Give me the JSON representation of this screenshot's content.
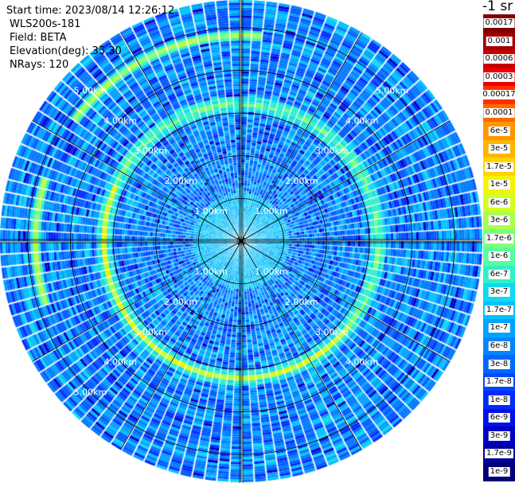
{
  "info": {
    "start_time": "Start time: 2023/08/14 12:26:12",
    "instrument": "WLS200s-181",
    "field": "Field: BETA",
    "elevation": "Elevation(deg): 35.30",
    "nrays": "NRays: 120"
  },
  "colorbar": {
    "title": "-1 sr",
    "labels": [
      "0.0017",
      "0.001",
      "0.0006",
      "0.0003",
      "0.00017",
      "0.0001",
      "6e-5",
      "3e-5",
      "1.7e-5",
      "1e-5",
      "6e-6",
      "3e-6",
      "1.7e-6",
      "1e-6",
      "6e-7",
      "3e-7",
      "1.7e-7",
      "1e-7",
      "6e-8",
      "3e-8",
      "1.7e-8",
      "1e-8",
      "6e-9",
      "3e-9",
      "1.7e-9",
      "1e-9"
    ],
    "colors": [
      "#800000",
      "#a00000",
      "#c80000",
      "#f00000",
      "#ff3000",
      "#ff6a00",
      "#ff9600",
      "#ffb400",
      "#ffd400",
      "#f4f400",
      "#d2ff24",
      "#a8ff4e",
      "#80ff78",
      "#56ffa0",
      "#30f0c8",
      "#10d8f0",
      "#00c0ff",
      "#00a4ff",
      "#0086ff",
      "#0068ff",
      "#0048ff",
      "#002aff",
      "#0010e8",
      "#0000c4",
      "#00009c",
      "#000078"
    ]
  },
  "chart_data": {
    "type": "heatmap",
    "projection": "polar PPI scan",
    "n_rays": 120,
    "range_rings_km": [
      1,
      2,
      3,
      4,
      5
    ],
    "range_ring_labels": [
      "1.00km",
      "2.00km",
      "3.00km",
      "4.00km",
      "5.00km"
    ],
    "max_range_km": 5.65,
    "field": "BETA",
    "units": "-1 sr",
    "scale": "log",
    "value_range": [
      1e-09,
      0.0017
    ],
    "background_level": "approx 3e-8 to 1.7e-7 (blue to cyan)",
    "features": [
      {
        "description": "enhanced backscatter ring",
        "range_km": 3.2,
        "approx_value": "1e-6 to 1e-5 (green-yellow)",
        "strongest_sector": "south and west"
      },
      {
        "description": "enhanced backscatter arc",
        "range_km": 4.8,
        "approx_value": "1e-6 to 6e-6",
        "sector": "north-west and west"
      }
    ]
  }
}
